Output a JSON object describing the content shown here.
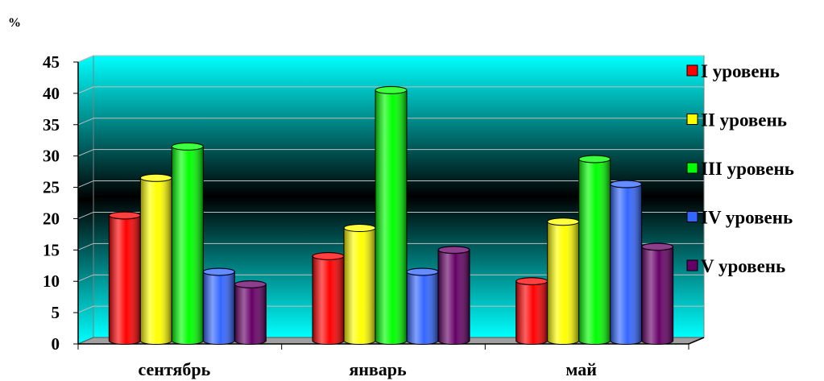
{
  "chart_data": {
    "type": "bar",
    "bar_shape": "cylinder",
    "three_d": true,
    "categories": [
      "сентябрь",
      "январь",
      "май"
    ],
    "series": [
      {
        "name": "I уровень",
        "color": "#FF0000",
        "values": [
          20,
          13.5,
          9.5
        ]
      },
      {
        "name": "II уровень",
        "color": "#FFFF00",
        "values": [
          26,
          18,
          19
        ]
      },
      {
        "name": "III уровень",
        "color": "#00FF00",
        "values": [
          31,
          40,
          29
        ]
      },
      {
        "name": "IV уровень",
        "color": "#3366FF",
        "values": [
          11,
          11,
          25
        ]
      },
      {
        "name": "V уровень",
        "color": "#660066",
        "values": [
          9,
          14.5,
          15
        ]
      }
    ],
    "ylabel": "%",
    "ylim": [
      0,
      45
    ],
    "yticks": [
      0,
      5,
      10,
      15,
      20,
      25,
      30,
      35,
      40,
      45
    ],
    "grid": true,
    "legend": "right",
    "background_gradient": [
      "#00FFFF",
      "#000000",
      "#00FFFF"
    ],
    "floor_color": "#A0A0A0"
  }
}
